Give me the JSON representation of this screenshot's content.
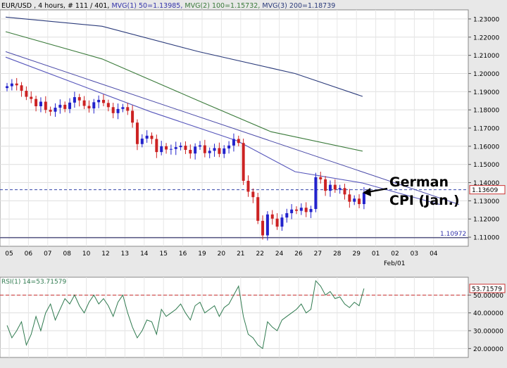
{
  "header": {
    "symbol": "EUR/USD",
    "info": ", 4 hours, # 111 / 401,",
    "mvg1": "MVG(1) 50=1.13985,",
    "mvg2": "MVG(2) 100=1.15732,",
    "mvg3": "MVG(3) 200=1.18739"
  },
  "colors": {
    "candle_up": "#2222cc",
    "candle_down": "#cc2222",
    "mvg50": "#5555bb",
    "mvg100": "#3a7a3a",
    "mvg200": "#2a3a7a",
    "rsi": "#2f7a4f",
    "dashed_price": "#3344aa",
    "rsi_level": "#cc3333"
  },
  "annotation": {
    "line1": "German",
    "line2": "CPI (Jan.)"
  },
  "chart_data": [
    {
      "type": "candlestick",
      "title": "",
      "price_axis": {
        "min": 1.105,
        "max": 1.235,
        "ticks": [
          "1.23000",
          "1.22000",
          "1.21000",
          "1.20000",
          "1.19000",
          "1.18000",
          "1.17000",
          "1.16000",
          "1.15000",
          "1.14000",
          "1.13000",
          "1.12000",
          "1.11000"
        ],
        "tick_values": [
          1.23,
          1.22,
          1.21,
          1.2,
          1.19,
          1.18,
          1.17,
          1.16,
          1.15,
          1.14,
          1.13,
          1.12,
          1.11
        ]
      },
      "date_axis": {
        "labels": [
          "05",
          "06",
          "07",
          "08",
          "10",
          "12",
          "13",
          "14",
          "15",
          "16",
          "19",
          "20",
          "21",
          "22",
          "24",
          "26",
          "27",
          "28",
          "29",
          "01",
          "02",
          "03",
          "04"
        ],
        "label_positions": [
          0,
          4,
          8,
          12,
          16,
          20,
          24,
          28,
          32,
          36,
          40,
          44,
          48,
          52,
          56,
          60,
          64,
          68,
          72,
          76,
          80,
          84,
          88
        ],
        "month_label": "Feb/01",
        "total_bars": 92
      },
      "current_price": "1.13609",
      "current_price_value": 1.13609,
      "support_level": "1.10972",
      "support_value": 1.10972,
      "candles_close": [
        1.193,
        1.1945,
        1.1935,
        1.1905,
        1.1872,
        1.186,
        1.182,
        1.1845,
        1.18,
        1.179,
        1.1812,
        1.1828,
        1.1805,
        1.184,
        1.187,
        1.1852,
        1.1822,
        1.1808,
        1.1842,
        1.1855,
        1.1838,
        1.1815,
        1.1782,
        1.1805,
        1.1815,
        1.1795,
        1.173,
        1.1612,
        1.1642,
        1.1658,
        1.164,
        1.1568,
        1.16,
        1.1582,
        1.1585,
        1.1595,
        1.1603,
        1.158,
        1.156,
        1.1598,
        1.1605,
        1.1562,
        1.1575,
        1.159,
        1.1558,
        1.1588,
        1.1604,
        1.164,
        1.1618,
        1.141,
        1.135,
        1.132,
        1.119,
        1.111,
        1.1225,
        1.1202,
        1.1158,
        1.1208,
        1.1232,
        1.1252,
        1.1245,
        1.1262,
        1.1238,
        1.1255,
        1.143,
        1.1418,
        1.1355,
        1.1388,
        1.1362,
        1.137,
        1.1335,
        1.1295,
        1.1312,
        1.1282,
        1.1345
      ],
      "mvg50": [
        [
          0,
          1.209
        ],
        [
          30,
          1.179
        ],
        [
          48,
          1.163
        ],
        [
          60,
          1.146
        ],
        [
          74,
          1.1398
        ]
      ],
      "mvg50_ext": [
        [
          74,
          1.1398
        ],
        [
          90,
          1.128
        ]
      ],
      "mvg100": [
        [
          0,
          1.223
        ],
        [
          20,
          1.208
        ],
        [
          40,
          1.185
        ],
        [
          55,
          1.168
        ],
        [
          74,
          1.1573
        ]
      ],
      "mvg200": [
        [
          0,
          1.231
        ],
        [
          20,
          1.226
        ],
        [
          40,
          1.212
        ],
        [
          60,
          1.2
        ],
        [
          74,
          1.1874
        ]
      ],
      "trendline": [
        [
          0,
          1.212
        ],
        [
          94,
          1.128
        ]
      ]
    },
    {
      "type": "line",
      "title": "",
      "label": "RSI(1) 14=53.71579",
      "value_label": "53.71579",
      "value": 53.71579,
      "y_axis": {
        "min": 15,
        "max": 60,
        "ticks": [
          "50.00000",
          "40.00000",
          "30.00000",
          "20.00000"
        ],
        "tick_values": [
          50,
          40,
          30,
          20
        ]
      },
      "level": 50,
      "values": [
        33,
        26,
        30,
        35,
        22,
        28,
        38,
        30,
        40,
        45,
        36,
        42,
        48,
        45,
        50,
        44,
        40,
        46,
        50,
        45,
        48,
        44,
        38,
        46,
        50,
        40,
        32,
        26,
        30,
        36,
        35,
        28,
        42,
        38,
        40,
        42,
        45,
        40,
        36,
        44,
        46,
        40,
        42,
        44,
        38,
        43,
        45,
        50,
        55,
        38,
        28,
        26,
        22,
        20,
        35,
        32,
        30,
        36,
        38,
        40,
        42,
        45,
        40,
        42,
        58,
        55,
        50,
        52,
        48,
        49,
        45,
        43,
        46,
        44,
        53.7
      ]
    }
  ]
}
